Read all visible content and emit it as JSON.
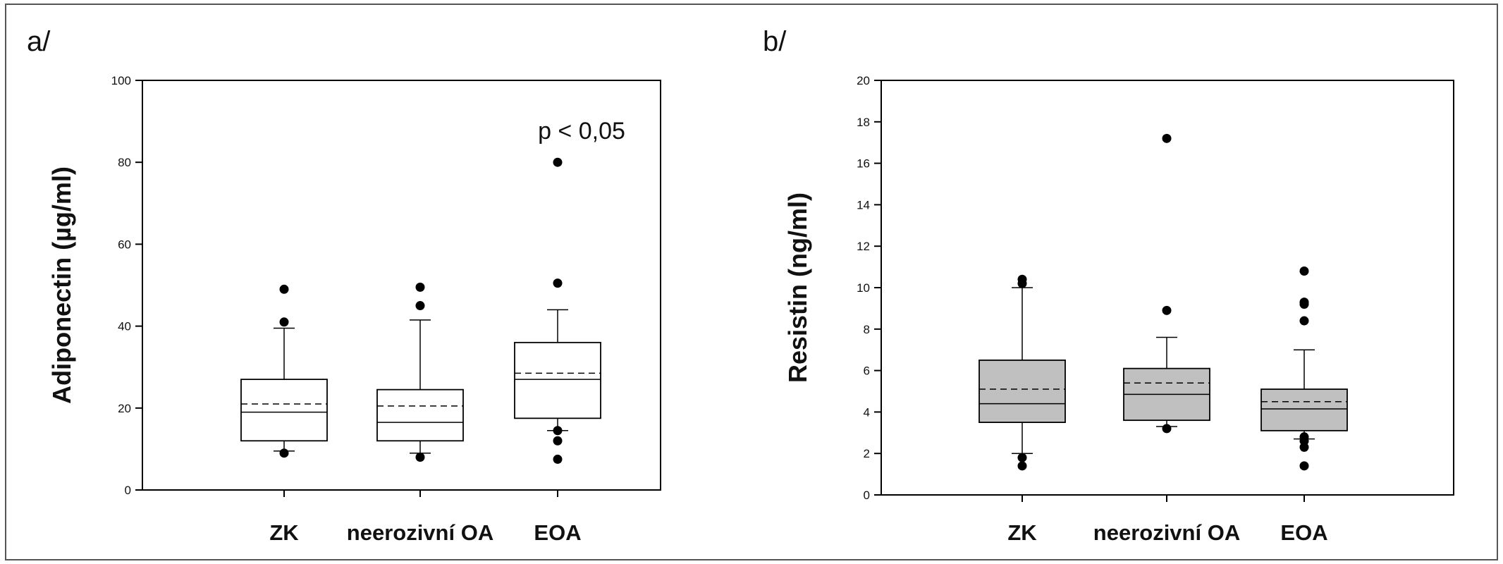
{
  "chart_data": [
    {
      "type": "box",
      "panel_label": "a/",
      "ylabel": "Adiponectin (µg/ml)",
      "ylim": [
        0,
        100
      ],
      "yticks": [
        0,
        20,
        40,
        60,
        80,
        100
      ],
      "box_fill": "#ffffff",
      "annotation": "p < 0,05",
      "categories": [
        "ZK",
        "neerozivní OA",
        "EOA"
      ],
      "boxes": [
        {
          "whisker_low": 9.5,
          "q1": 12,
          "median": 19,
          "mean": 21,
          "q3": 27,
          "whisker_high": 39.5,
          "outliers": [
            9,
            41,
            49
          ]
        },
        {
          "whisker_low": 9,
          "q1": 12,
          "median": 16.5,
          "mean": 20.5,
          "q3": 24.5,
          "whisker_high": 41.5,
          "outliers": [
            8,
            45,
            49.5
          ]
        },
        {
          "whisker_low": 14.5,
          "q1": 17.5,
          "median": 27,
          "mean": 28.5,
          "q3": 36,
          "whisker_high": 44,
          "outliers": [
            7.5,
            12,
            14.5,
            50.5,
            80
          ]
        }
      ]
    },
    {
      "type": "box",
      "panel_label": "b/",
      "ylabel": "Resistin (ng/ml)",
      "ylim": [
        0,
        20
      ],
      "yticks": [
        0,
        2,
        4,
        6,
        8,
        10,
        12,
        14,
        16,
        18,
        20
      ],
      "box_fill": "#c0c0c0",
      "annotation": "",
      "categories": [
        "ZK",
        "neerozivní OA",
        "EOA"
      ],
      "boxes": [
        {
          "whisker_low": 2,
          "q1": 3.5,
          "median": 4.4,
          "mean": 5.1,
          "q3": 6.5,
          "whisker_high": 10,
          "outliers": [
            1.4,
            1.8,
            10.2,
            10.4
          ]
        },
        {
          "whisker_low": 3.3,
          "q1": 3.6,
          "median": 4.85,
          "mean": 5.4,
          "q3": 6.1,
          "whisker_high": 7.6,
          "outliers": [
            3.2,
            8.9,
            17.2
          ]
        },
        {
          "whisker_low": 2.7,
          "q1": 3.1,
          "median": 4.15,
          "mean": 4.5,
          "q3": 5.1,
          "whisker_high": 7,
          "outliers": [
            1.4,
            2.3,
            2.6,
            2.8,
            8.4,
            9.2,
            9.3,
            10.8
          ]
        }
      ]
    }
  ]
}
